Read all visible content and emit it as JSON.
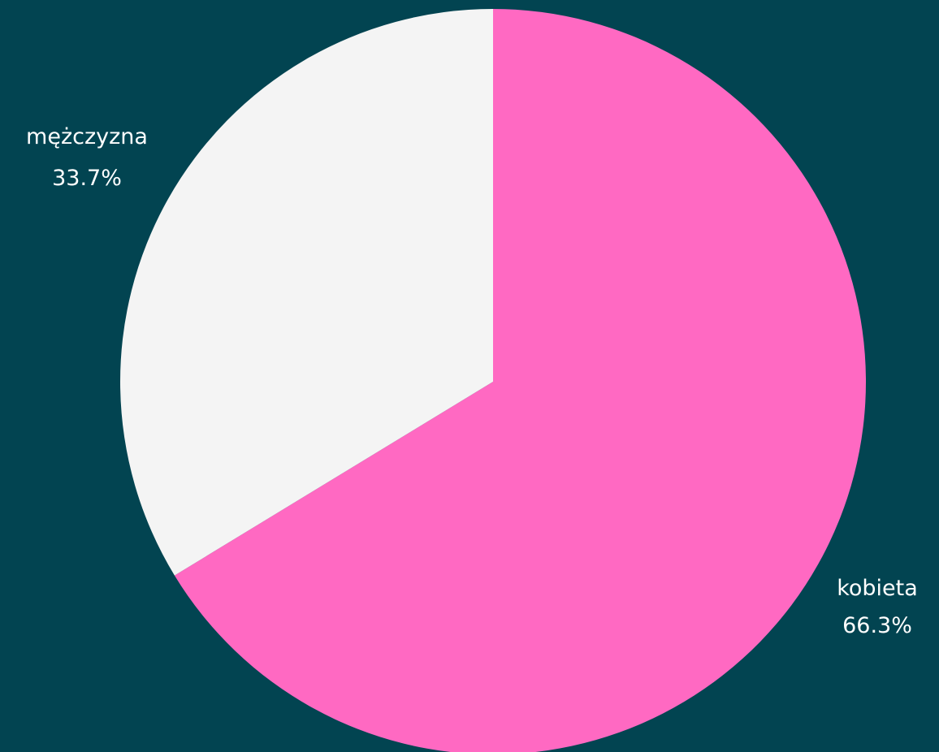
{
  "chart_data": {
    "type": "pie",
    "background": "#024451",
    "slices": [
      {
        "label": "kobieta",
        "value": 66.3,
        "value_label": "66.3%",
        "color": "#ff69c2"
      },
      {
        "label": "mężczyzna",
        "value": 33.7,
        "value_label": "33.7%",
        "color": "#f4f4f4"
      }
    ],
    "start_angle": "12 o'clock",
    "direction": "clockwise",
    "legend": "none"
  }
}
